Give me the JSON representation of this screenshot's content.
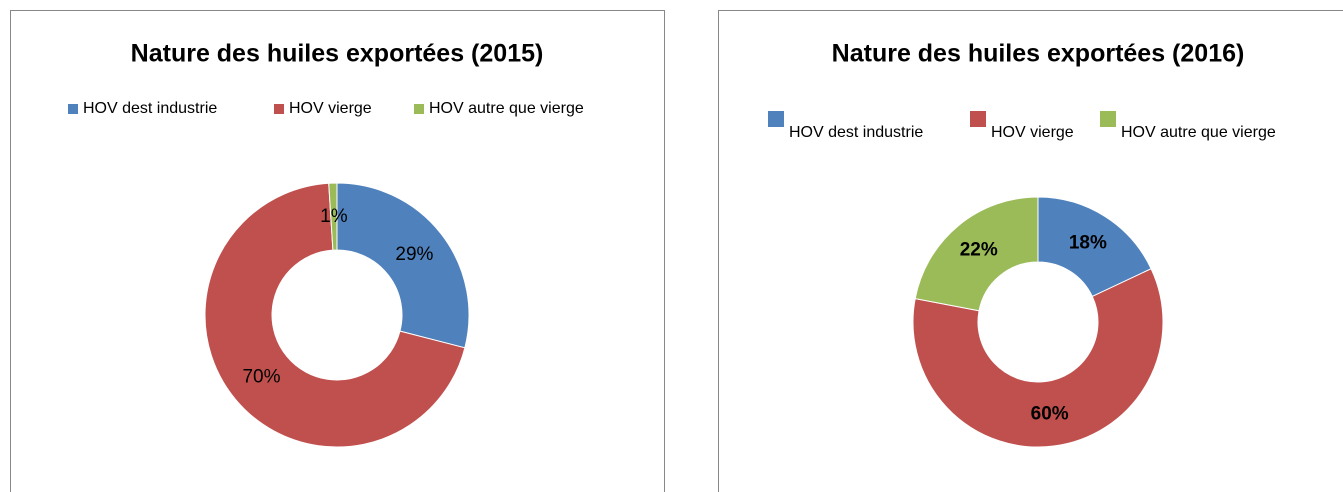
{
  "chart_data": [
    {
      "type": "pie",
      "title": "Nature des huiles exportées (2015)",
      "categories": [
        "HOV dest industrie",
        "HOV vierge",
        "HOV autre que vierge"
      ],
      "values": [
        29,
        70,
        1
      ],
      "value_labels": [
        "29%",
        "70%",
        "1%"
      ],
      "colors": [
        "#4f81bd",
        "#c0504d",
        "#9bbb59"
      ],
      "donut": true,
      "label_weight": "normal"
    },
    {
      "type": "pie",
      "title": "Nature des huiles exportées (2016)",
      "categories": [
        "HOV dest industrie",
        "HOV vierge",
        "HOV autre que vierge"
      ],
      "values": [
        18,
        60,
        22
      ],
      "value_labels": [
        "18%",
        "60%",
        "22%"
      ],
      "colors": [
        "#4f81bd",
        "#c0504d",
        "#9bbb59"
      ],
      "donut": true,
      "label_weight": "bold"
    }
  ]
}
